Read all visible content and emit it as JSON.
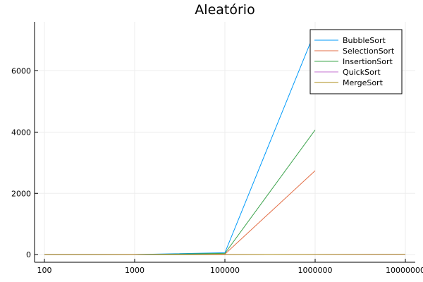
{
  "chart_data": {
    "type": "line",
    "title": "Aleatório",
    "xlabel": "",
    "ylabel": "",
    "x_categorical": true,
    "categories": [
      "100",
      "1000",
      "100000",
      "1000000",
      "10000000"
    ],
    "ylim": [
      -250,
      7600
    ],
    "yticks": [
      0,
      2000,
      4000,
      6000
    ],
    "grid": true,
    "legend_position": "top-right",
    "series": [
      {
        "name": "BubbleSort",
        "color": "#009AFA",
        "values": [
          0.5,
          3,
          60,
          7300,
          null
        ]
      },
      {
        "name": "SelectionSort",
        "color": "#E36F47",
        "values": [
          0.3,
          1,
          15,
          2740,
          null
        ]
      },
      {
        "name": "InsertionSort",
        "color": "#3EA44E",
        "values": [
          0.4,
          2,
          40,
          4070,
          null
        ]
      },
      {
        "name": "QuickSort",
        "color": "#C371D2",
        "values": [
          0.01,
          0.05,
          0.5,
          4,
          10
        ]
      },
      {
        "name": "MergeSort",
        "color": "#AC8E18",
        "values": [
          0.02,
          0.1,
          1,
          6,
          15
        ]
      }
    ]
  }
}
